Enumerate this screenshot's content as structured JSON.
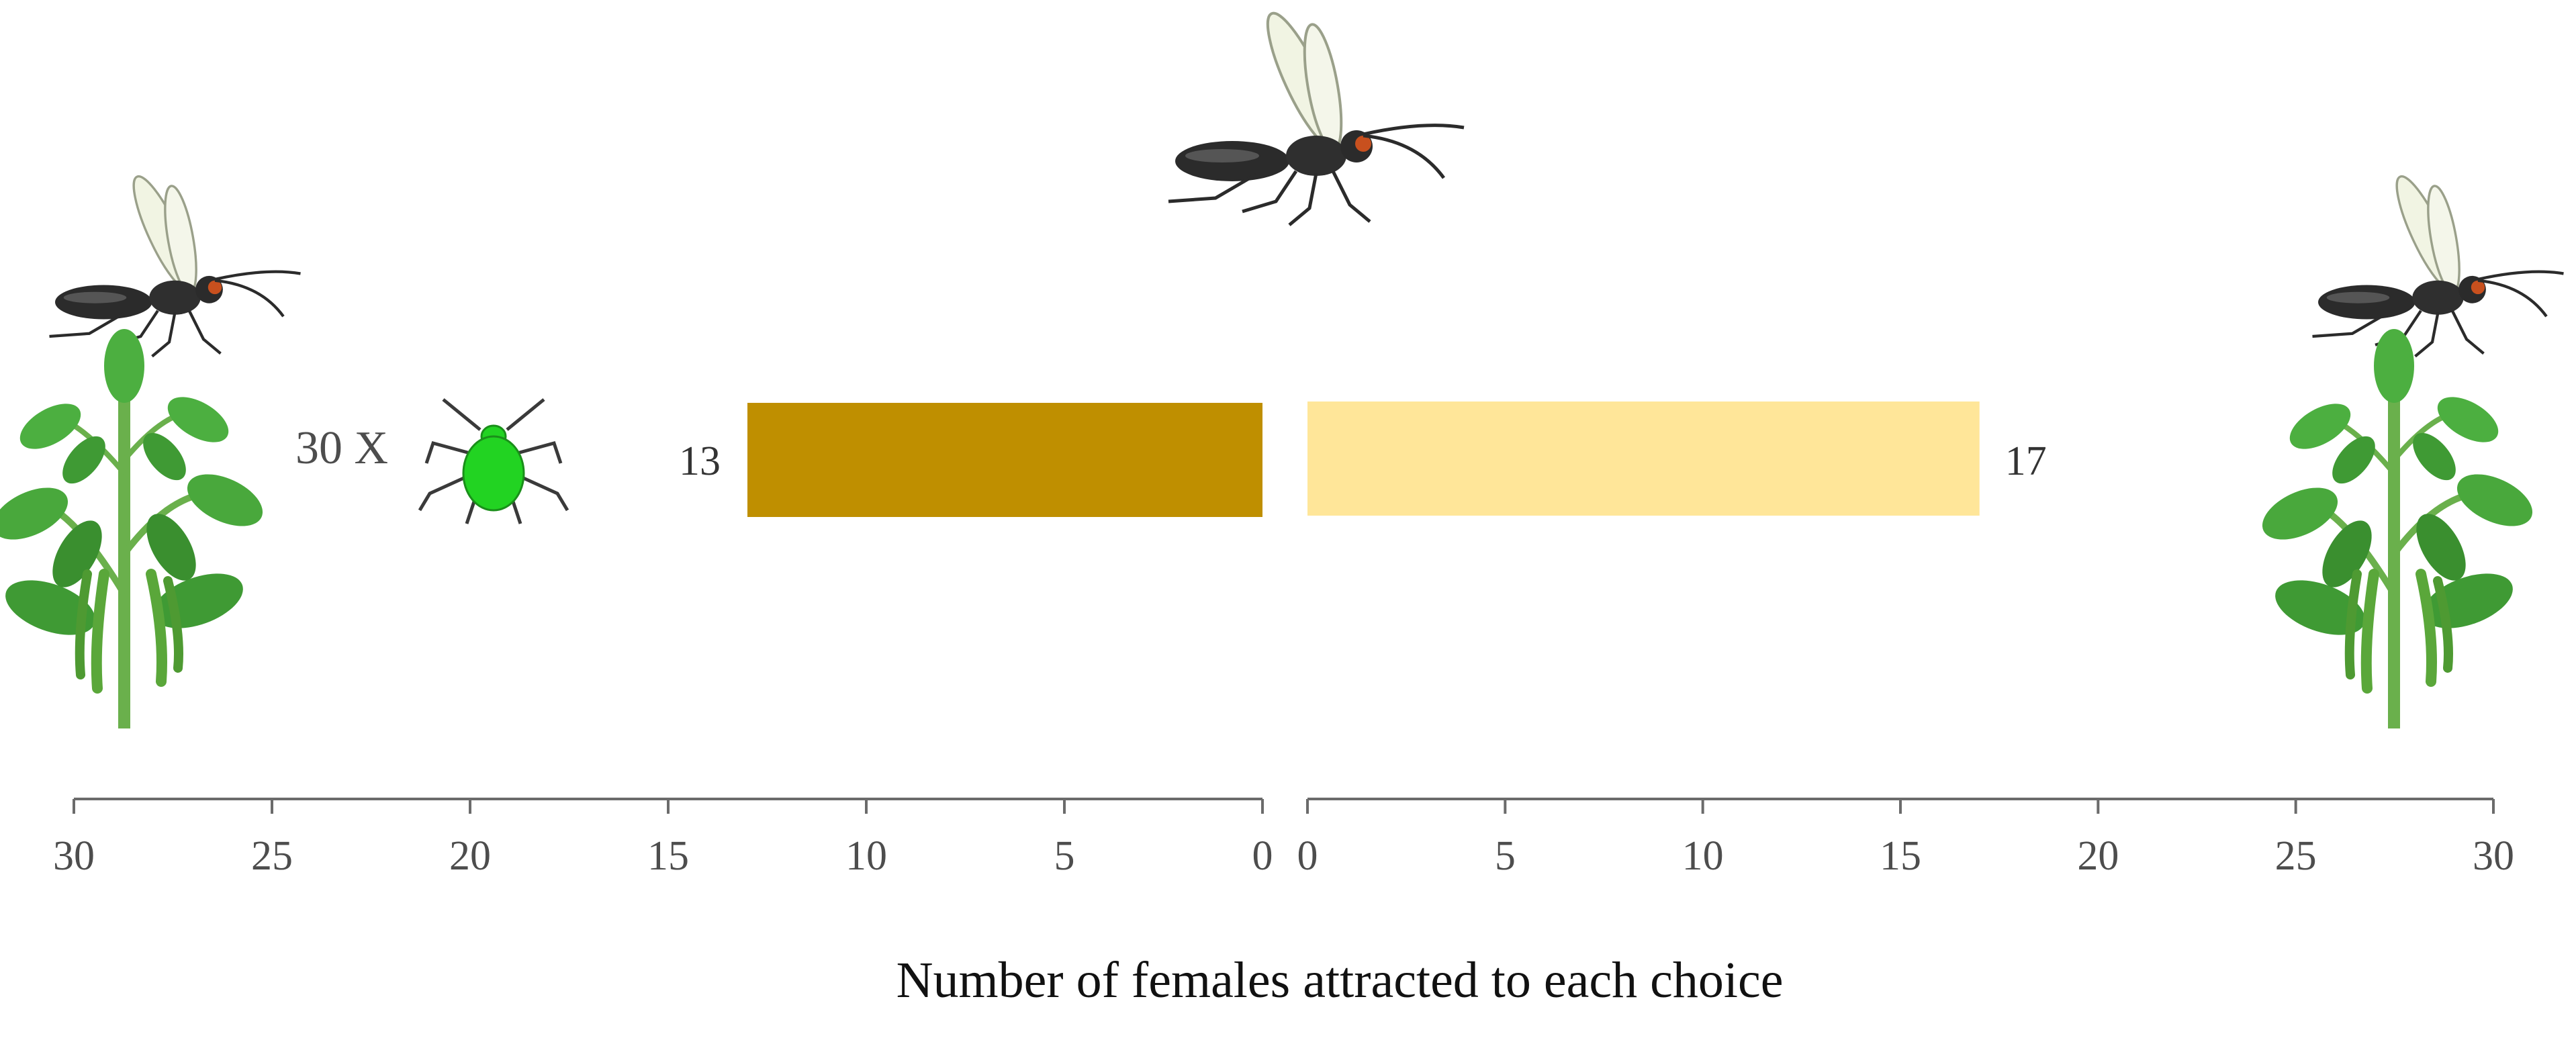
{
  "chart_data": {
    "type": "bar",
    "orientation": "horizontal",
    "layout": "back-to-back",
    "xlabel": "Number of females attracted to each choice",
    "xlim": [
      0,
      30
    ],
    "ticks": [
      0,
      5,
      10,
      15,
      20,
      25,
      30
    ],
    "tick_labels": [
      "0",
      "5",
      "10",
      "15",
      "20",
      "25",
      "30"
    ],
    "grid": false,
    "series": [
      {
        "side": "left",
        "value": 13,
        "value_label": "13",
        "color": "#bf8f00"
      },
      {
        "side": "right",
        "value": 17,
        "value_label": "17",
        "color": "#ffe699"
      }
    ],
    "annotations": {
      "aphid_count": "30 X"
    },
    "icons": [
      "parasitoid-wasp-icon",
      "plant-icon",
      "aphid-icon"
    ],
    "colors": {
      "axis": "#6b6b6b",
      "leaf": "#3f9a34",
      "aphid": "#22d322",
      "wasp": "#2b2b2b",
      "wasp_eye": "#c8501e"
    }
  }
}
